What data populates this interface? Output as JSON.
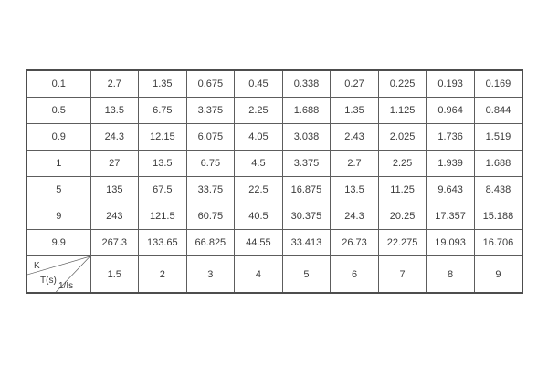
{
  "colors": {
    "background": "#ffffff",
    "border_outer": "#4d4d4d",
    "border_inner": "#5d5d5d",
    "text": "#3b3b3b"
  },
  "chart_data": {
    "type": "table",
    "title": "",
    "corner": {
      "k_label": "K",
      "t_label": "T(s)",
      "i_label": "1/Is"
    },
    "row_axis_label": "K",
    "col_axis_label": "T(s)",
    "col_headers": [
      "1.5",
      "2",
      "3",
      "4",
      "5",
      "6",
      "7",
      "8",
      "9"
    ],
    "row_headers": [
      "0.1",
      "0.5",
      "0.9",
      "1",
      "5",
      "9",
      "9.9"
    ],
    "rows": [
      [
        "2.7",
        "1.35",
        "0.675",
        "0.45",
        "0.338",
        "0.27",
        "0.225",
        "0.193",
        "0.169"
      ],
      [
        "13.5",
        "6.75",
        "3.375",
        "2.25",
        "1.688",
        "1.35",
        "1.125",
        "0.964",
        "0.844"
      ],
      [
        "24.3",
        "12.15",
        "6.075",
        "4.05",
        "3.038",
        "2.43",
        "2.025",
        "1.736",
        "1.519"
      ],
      [
        "27",
        "13.5",
        "6.75",
        "4.5",
        "3.375",
        "2.7",
        "2.25",
        "1.939",
        "1.688"
      ],
      [
        "135",
        "67.5",
        "33.75",
        "22.5",
        "16.875",
        "13.5",
        "11.25",
        "9.643",
        "8.438"
      ],
      [
        "243",
        "121.5",
        "60.75",
        "40.5",
        "30.375",
        "24.3",
        "20.25",
        "17.357",
        "15.188"
      ],
      [
        "267.3",
        "133.65",
        "66.825",
        "44.55",
        "33.413",
        "26.73",
        "22.275",
        "19.093",
        "16.706"
      ]
    ]
  }
}
